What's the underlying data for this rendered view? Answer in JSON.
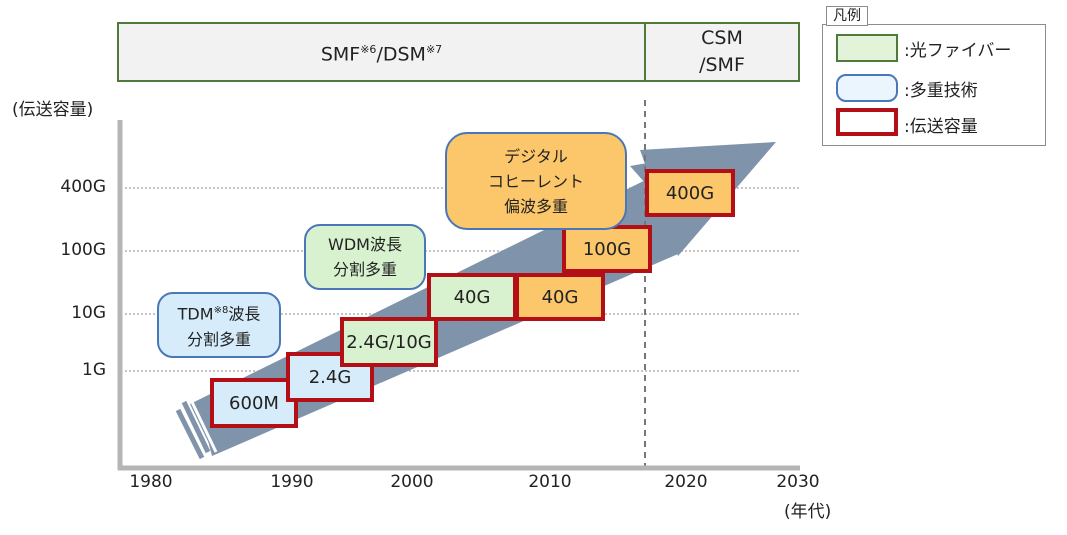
{
  "fiber_bar": {
    "smf_dsm": {
      "smf": "SMF",
      "note6": "※6",
      "dsm": "/DSM",
      "note7": "※7"
    },
    "csm_line1": "CSM",
    "csm_line2": "/SMF"
  },
  "y_axis": {
    "label": "(伝送容量)",
    "ticks": [
      "400G",
      "100G",
      "10G",
      "1G"
    ]
  },
  "x_axis": {
    "ticks": [
      "1980",
      "1990",
      "2000",
      "2010",
      "2020",
      "2030"
    ],
    "unit": "(年代)"
  },
  "capacity_boxes": [
    "600M",
    "2.4G",
    "2.4G/10G",
    "40G",
    "40G",
    "100G",
    "400G"
  ],
  "tech_bubbles": {
    "tdm": {
      "line1_a": "TDM",
      "line1_note": "※8",
      "line1_b": "波長",
      "line2": "分割多重"
    },
    "wdm": {
      "line1": "WDM波長",
      "line2": "分割多重"
    },
    "coherent": {
      "line1": "デジタル",
      "line2": "コヒーレント",
      "line3": "偏波多重"
    }
  },
  "legend": {
    "title": "凡例",
    "items": [
      ":光ファイバー",
      ":多重技術",
      ":伝送容量"
    ]
  },
  "colors": {
    "fiber_border": "#4e7a3a",
    "tech_border": "#4a77b8",
    "capacity_border": "#b30f16",
    "arrow": "#7f93ab"
  }
}
